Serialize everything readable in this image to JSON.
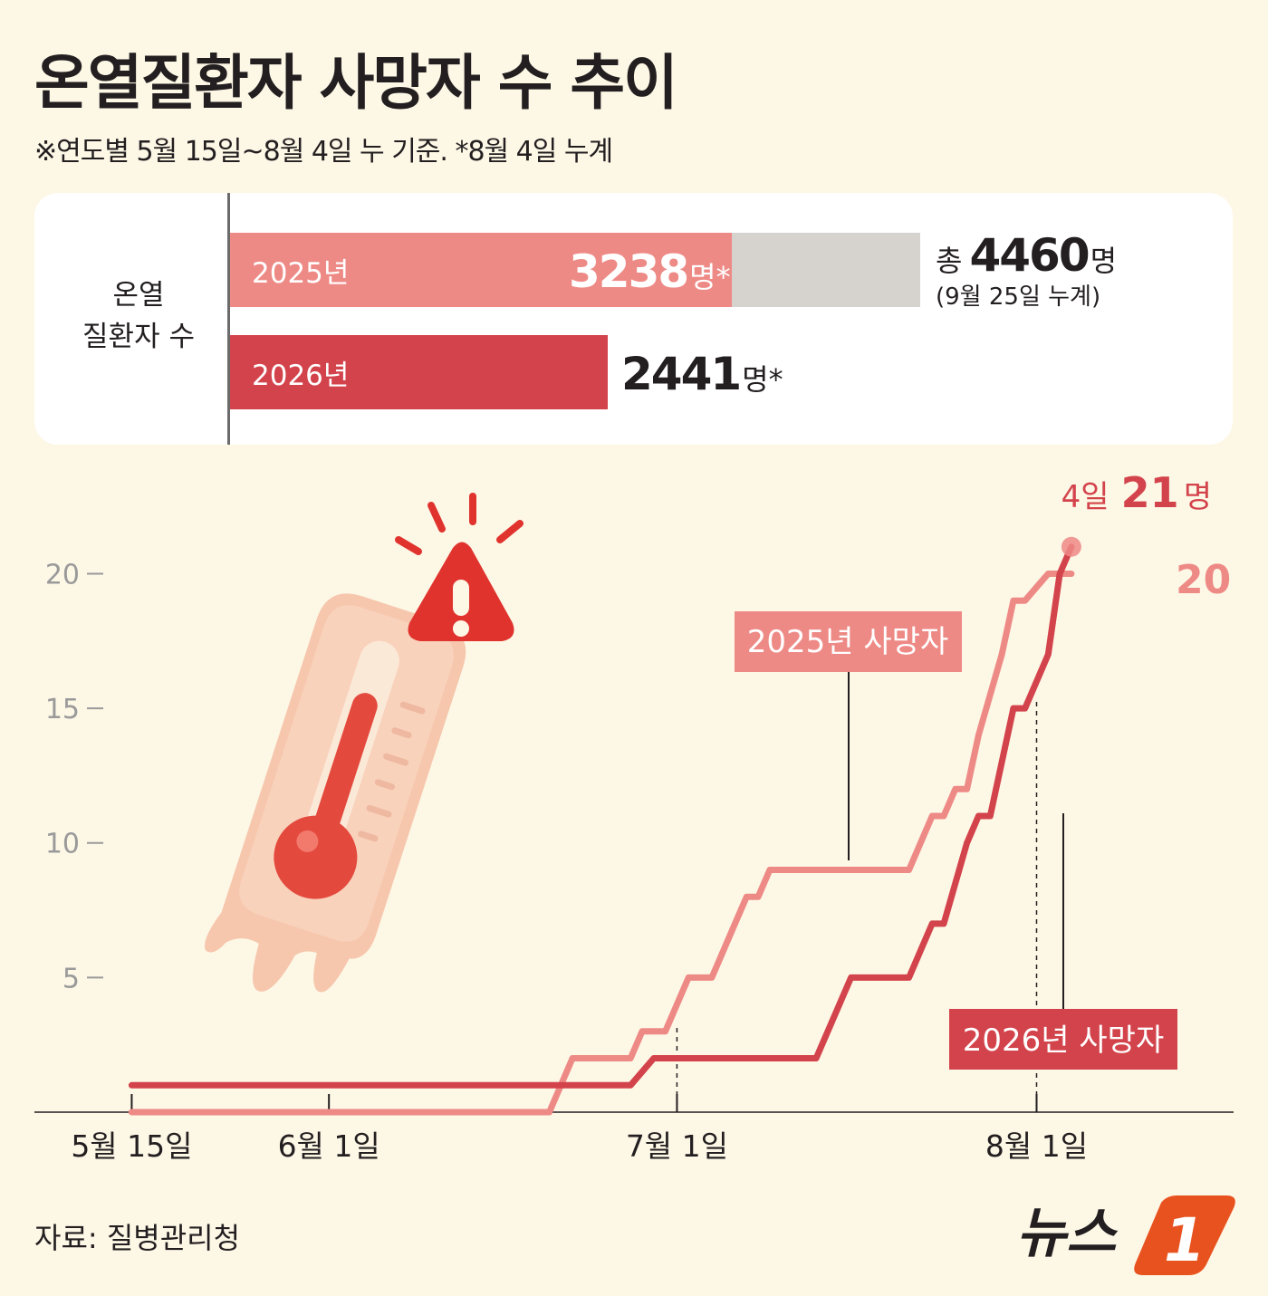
{
  "header": {
    "title": "온열질환자 사망자 수 추이",
    "subtitle": "※연도별 5월 15일~8월 4일 누 기준.  *8월 4일 누계"
  },
  "summary": {
    "row_label_line1": "온열",
    "row_label_line2": "질환자 수",
    "bars": [
      {
        "year": "2025년",
        "value_text": "3238",
        "unit": "명*",
        "value": 3238,
        "color": "#ee8a86"
      },
      {
        "year": "2026년",
        "value_text": "2441",
        "unit": "명*",
        "value": 2441,
        "color": "#d3434b"
      }
    ],
    "total": {
      "prefix": "총",
      "value_text": "4460",
      "unit": "명",
      "value": 4460,
      "note": "(9월 25일 누계)"
    }
  },
  "chart_data": {
    "type": "line",
    "x_type": "date",
    "xlim": [
      "2026-05-12",
      "2026-08-14"
    ],
    "ylim": [
      0,
      22
    ],
    "x_ticks": [
      {
        "date": "2026-05-15",
        "label": "5월 15일"
      },
      {
        "date": "2026-06-01",
        "label": "6월 1일"
      },
      {
        "date": "2026-07-01",
        "label": "7월 1일"
      },
      {
        "date": "2026-08-01",
        "label": "8월 1일"
      }
    ],
    "y_ticks": [
      5,
      10,
      15,
      20
    ],
    "y_tick_labels": [
      "5",
      "10",
      "15",
      "20"
    ],
    "series": [
      {
        "name": "2025년 사망자",
        "color": "#ee8a86",
        "points": [
          [
            "2026-05-15",
            0
          ],
          [
            "2026-06-20",
            0
          ],
          [
            "2026-06-22",
            2
          ],
          [
            "2026-06-27",
            2
          ],
          [
            "2026-06-28",
            3
          ],
          [
            "2026-06-30",
            3
          ],
          [
            "2026-07-02",
            5
          ],
          [
            "2026-07-04",
            5
          ],
          [
            "2026-07-06",
            7
          ],
          [
            "2026-07-07",
            8
          ],
          [
            "2026-07-08",
            8
          ],
          [
            "2026-07-09",
            9
          ],
          [
            "2026-07-21",
            9
          ],
          [
            "2026-07-23",
            11
          ],
          [
            "2026-07-24",
            11
          ],
          [
            "2026-07-25",
            12
          ],
          [
            "2026-07-26",
            12
          ],
          [
            "2026-07-27",
            14
          ],
          [
            "2026-07-29",
            17
          ],
          [
            "2026-07-30",
            19
          ],
          [
            "2026-07-31",
            19
          ],
          [
            "2026-08-01",
            19.5
          ],
          [
            "2026-08-02",
            20
          ],
          [
            "2026-08-04",
            20
          ]
        ]
      },
      {
        "name": "2026년 사망자",
        "color": "#d3434b",
        "points": [
          [
            "2026-05-15",
            1
          ],
          [
            "2026-06-27",
            1
          ],
          [
            "2026-06-29",
            2
          ],
          [
            "2026-07-13",
            2
          ],
          [
            "2026-07-16",
            5
          ],
          [
            "2026-07-21",
            5
          ],
          [
            "2026-07-23",
            7
          ],
          [
            "2026-07-24",
            7
          ],
          [
            "2026-07-26",
            10
          ],
          [
            "2026-07-27",
            11
          ],
          [
            "2026-07-28",
            11
          ],
          [
            "2026-07-30",
            15
          ],
          [
            "2026-07-31",
            15
          ],
          [
            "2026-08-01",
            16
          ],
          [
            "2026-08-02",
            17
          ],
          [
            "2026-08-03",
            20
          ],
          [
            "2026-08-04",
            21
          ]
        ]
      }
    ],
    "annotations": {
      "end_2026": {
        "prefix": "4일",
        "value": "21",
        "unit": "명"
      },
      "end_2025": {
        "value": "20"
      }
    }
  },
  "footer": {
    "source": "자료: 질병관리청",
    "logo_text": "뉴스",
    "logo_mark": "1"
  }
}
